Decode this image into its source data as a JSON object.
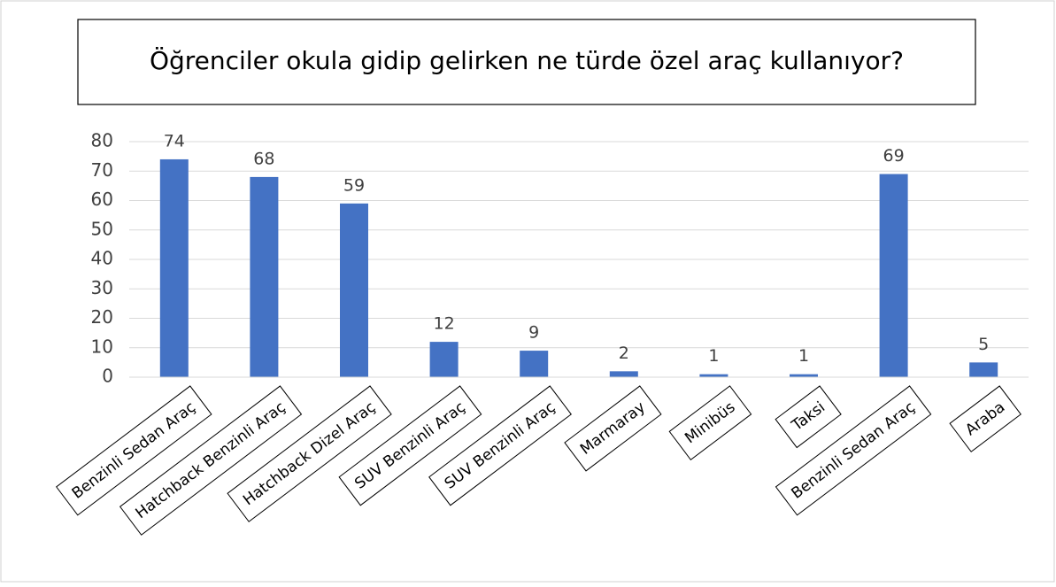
{
  "chart_data": {
    "type": "bar",
    "title": "Öğrenciler okula gidip gelirken ne türde özel araç kullanıyor?",
    "categories": [
      "Benzinli Sedan Araç",
      "Hatchback Benzinli Araç",
      "Hatchback Dizel Araç",
      "SUV Benzinli Araç",
      "SUV Benzinli Araç",
      "Marmaray",
      "Minibüs",
      "Taksi",
      "Benzinli Sedan Araç",
      "Araba"
    ],
    "values": [
      74,
      68,
      59,
      12,
      9,
      2,
      1,
      1,
      69,
      5
    ],
    "color": "#4472c4",
    "ylim": [
      0,
      80
    ],
    "yticks": [
      0,
      10,
      20,
      30,
      40,
      50,
      60,
      70,
      80
    ],
    "grid": true
  }
}
